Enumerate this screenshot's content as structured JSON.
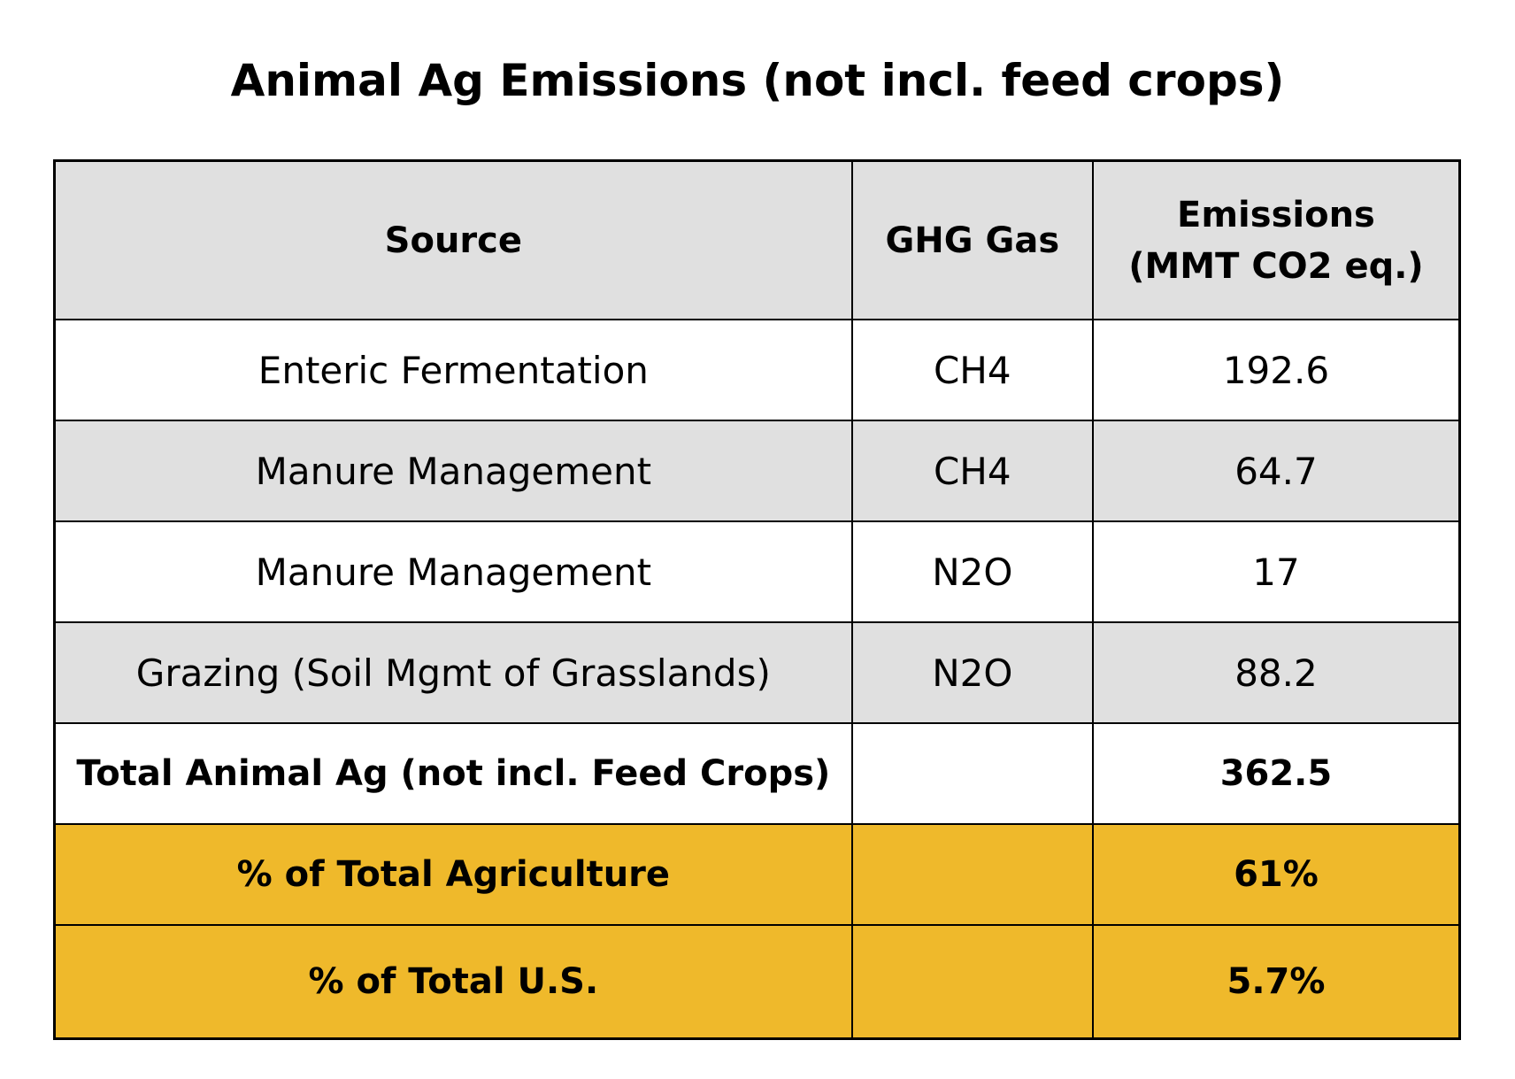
{
  "title": "Animal Ag Emissions (not incl. feed crops)",
  "colors": {
    "header_bg": "#e0e0e0",
    "highlight": "#efb92b"
  },
  "table": {
    "headers": [
      "Source",
      "GHG Gas",
      "Emissions",
      "(MMT CO2 eq.)"
    ],
    "rows": [
      {
        "source": "Enteric Fermentation",
        "gas": "CH4",
        "emissions": "192.6"
      },
      {
        "source": "Manure Management",
        "gas": "CH4",
        "emissions": "64.7"
      },
      {
        "source": "Manure Management",
        "gas": "N2O",
        "emissions": "17"
      },
      {
        "source": "Grazing (Soil Mgmt of Grasslands)",
        "gas": "N2O",
        "emissions": "88.2"
      }
    ],
    "total": {
      "label": "Total Animal Ag (not incl. Feed Crops)",
      "gas": "",
      "value": "362.5"
    },
    "pct_agriculture": {
      "label": "% of Total Agriculture",
      "gas": "",
      "value": "61%"
    },
    "pct_us": {
      "label": "% of Total U.S.",
      "gas": "",
      "value": "5.7%"
    }
  }
}
